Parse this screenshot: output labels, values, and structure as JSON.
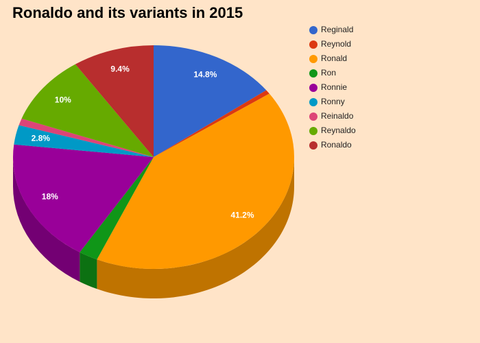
{
  "chart_data": {
    "type": "pie3d",
    "title": "Ronaldo and its variants in 2015",
    "categories": [
      "Reginald",
      "Reynold",
      "Ronald",
      "Ron",
      "Ronnie",
      "Ronny",
      "Reinaldo",
      "Reynaldo",
      "Ronaldo"
    ],
    "values": [
      14.8,
      0.6,
      41.2,
      2.2,
      18,
      2.8,
      1.0,
      10,
      9.4
    ],
    "value_labels": [
      "14.8%",
      null,
      "41.2%",
      null,
      "18%",
      "2.8%",
      null,
      "10%",
      "9.4%"
    ],
    "colors": [
      "#3366cc",
      "#dc3912",
      "#ff9900",
      "#109618",
      "#990099",
      "#0099c6",
      "#dd4477",
      "#66aa00",
      "#b82e2e"
    ],
    "legend": "right"
  }
}
